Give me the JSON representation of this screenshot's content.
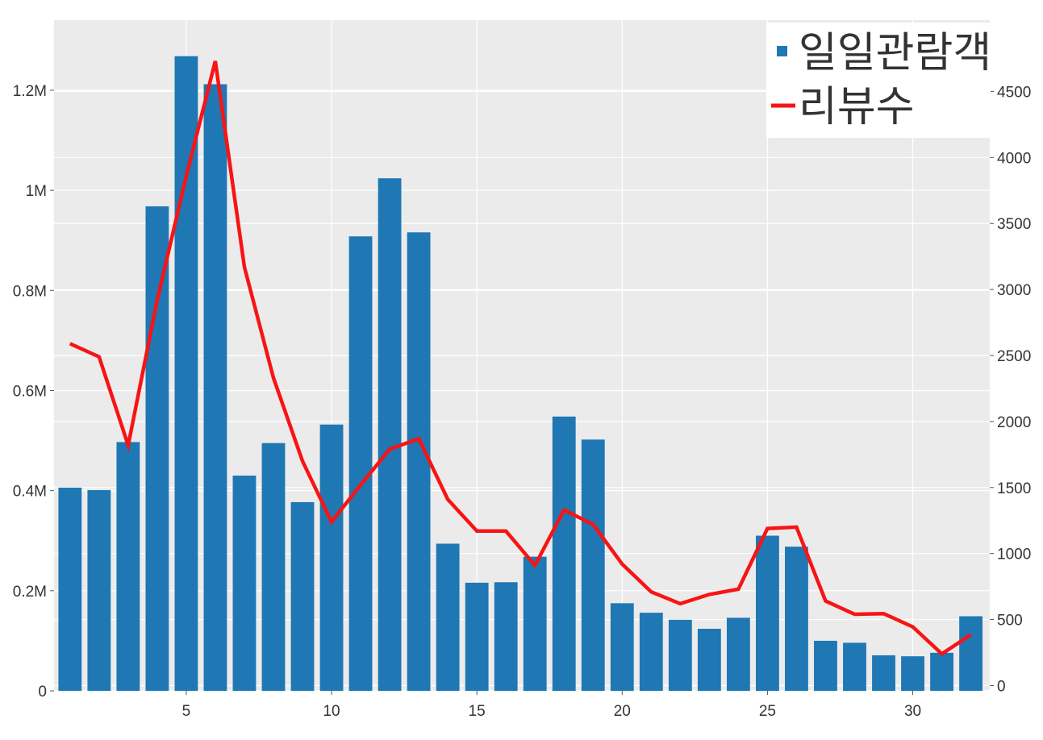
{
  "chart_data": {
    "type": "bar",
    "x": [
      1,
      2,
      3,
      4,
      5,
      6,
      7,
      8,
      9,
      10,
      11,
      12,
      13,
      14,
      15,
      16,
      17,
      18,
      19,
      20,
      21,
      22,
      23,
      24,
      25,
      26,
      27,
      28,
      29,
      30,
      31,
      32
    ],
    "series": [
      {
        "name": "일일관람객",
        "type": "bar",
        "axis": "left",
        "color": "#1f77b4",
        "values": [
          406000,
          401000,
          497000,
          968000,
          1268000,
          1212000,
          430000,
          495000,
          377000,
          532000,
          908000,
          1024000,
          916000,
          294000,
          216000,
          217000,
          268000,
          548000,
          502000,
          175000,
          156000,
          142000,
          124000,
          146000,
          310000,
          288000,
          100000,
          96000,
          71000,
          69000,
          76000,
          149000
        ]
      },
      {
        "name": "리뷰수",
        "type": "line",
        "axis": "right",
        "color": "#f81414",
        "values": [
          2590,
          2490,
          1820,
          2920,
          3860,
          4730,
          3170,
          2330,
          1700,
          1240,
          1520,
          1790,
          1870,
          1410,
          1170,
          1170,
          910,
          1330,
          1220,
          920,
          710,
          620,
          690,
          730,
          1190,
          1200,
          640,
          540,
          545,
          445,
          240,
          385
        ]
      }
    ],
    "xticks": [
      5,
      10,
      15,
      20,
      25,
      30
    ],
    "xlim": [
      0.45,
      32.65
    ],
    "y_left": {
      "lim": [
        0,
        1340000
      ],
      "ticks": [
        0,
        200000,
        400000,
        600000,
        800000,
        1000000,
        1200000
      ],
      "tick_labels": [
        "0",
        "0.2M",
        "0.4M",
        "0.6M",
        "0.8M",
        "1M",
        "1.2M"
      ]
    },
    "y_right": {
      "lim": [
        -40,
        5040
      ],
      "ticks": [
        0,
        500,
        1000,
        1500,
        2000,
        2500,
        3000,
        3500,
        4000,
        4500
      ],
      "tick_labels": [
        "0",
        "500",
        "1000",
        "1500",
        "2000",
        "2500",
        "3000",
        "3500",
        "4000",
        "4500"
      ]
    },
    "grid": true,
    "legend_position": "top-right",
    "title": "",
    "xlabel": "",
    "ylabel": ""
  },
  "style": {
    "plot_bg": "#ebebeb",
    "grid_color": "#ffffff"
  }
}
